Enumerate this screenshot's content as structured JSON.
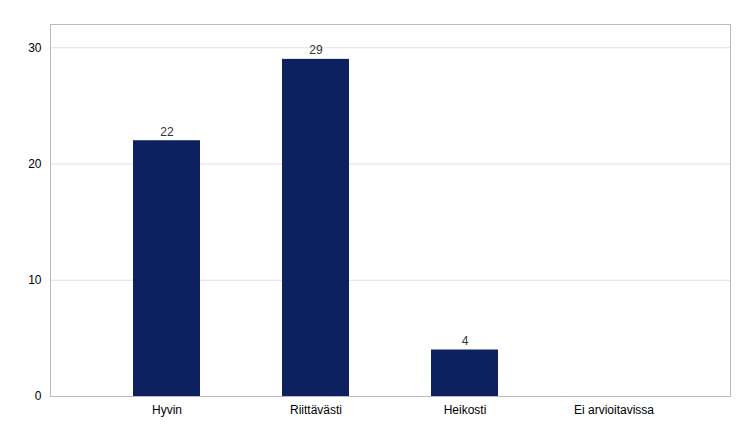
{
  "chart_data": {
    "type": "bar",
    "categories": [
      "Hyvin",
      "Riittävästi",
      "Heikosti",
      "Ei arvioitavissa"
    ],
    "values": [
      22,
      29,
      4,
      0
    ],
    "value_labels": [
      "22",
      "29",
      "4",
      null
    ],
    "data_labels": true,
    "color": "#0d2060",
    "ylim": [
      0,
      32
    ],
    "yticks": [
      0,
      10,
      20,
      30
    ],
    "grid": true
  }
}
